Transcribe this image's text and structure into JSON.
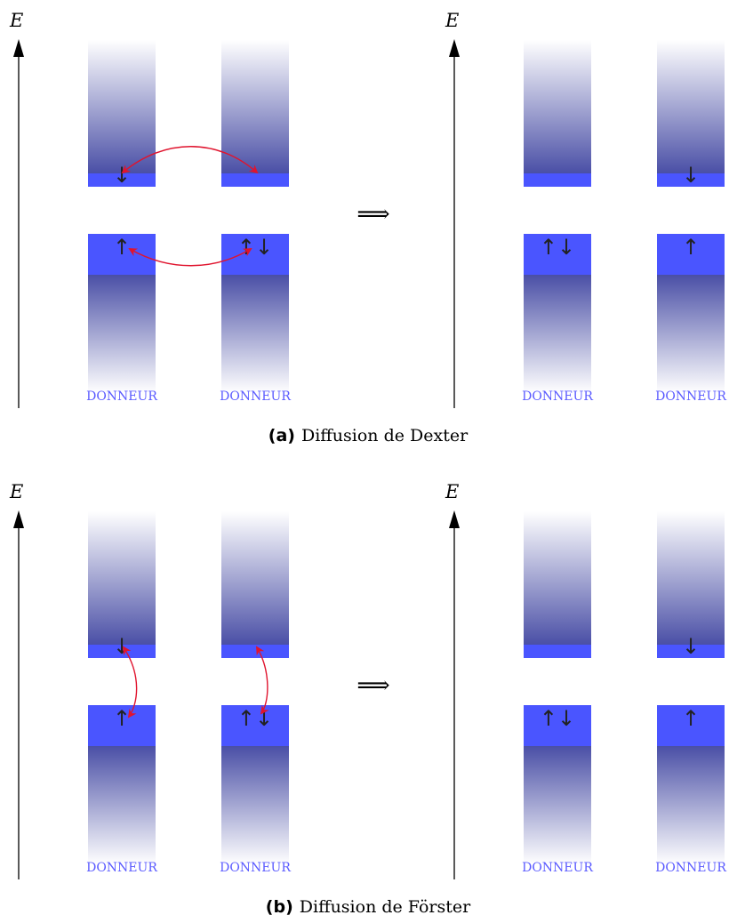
{
  "energy_label": "E",
  "donor_label": "DONNEUR",
  "implies_symbol": "⟹",
  "spin_up": "↑",
  "spin_down": "↓",
  "spin_pair": "↑↓",
  "colors": {
    "band": "#4a55ff",
    "gradient_dark": "#4a4fa6",
    "transfer_arrow": "#e0142e",
    "axis": "#000000",
    "donor_text": "#5a5aff"
  },
  "panels": [
    {
      "id": "a",
      "caption_tag": "(a)",
      "caption_text": "Diffusion de Dexter",
      "before": {
        "columns": [
          {
            "top_spin": "down",
            "bottom_spin": "up"
          },
          {
            "top_spin": "none",
            "bottom_spin": "pair"
          }
        ]
      },
      "after": {
        "columns": [
          {
            "top_spin": "none",
            "bottom_spin": "pair"
          },
          {
            "top_spin": "down",
            "bottom_spin": "up"
          }
        ]
      },
      "transfers": "inter-molecular exchange"
    },
    {
      "id": "b",
      "caption_tag": "(b)",
      "caption_text": "Diffusion de Förster",
      "before": {
        "columns": [
          {
            "top_spin": "down",
            "bottom_spin": "up"
          },
          {
            "top_spin": "none",
            "bottom_spin": "pair"
          }
        ]
      },
      "after": {
        "columns": [
          {
            "top_spin": "none",
            "bottom_spin": "pair"
          },
          {
            "top_spin": "down",
            "bottom_spin": "up"
          }
        ]
      },
      "transfers": "intra-molecular"
    }
  ]
}
